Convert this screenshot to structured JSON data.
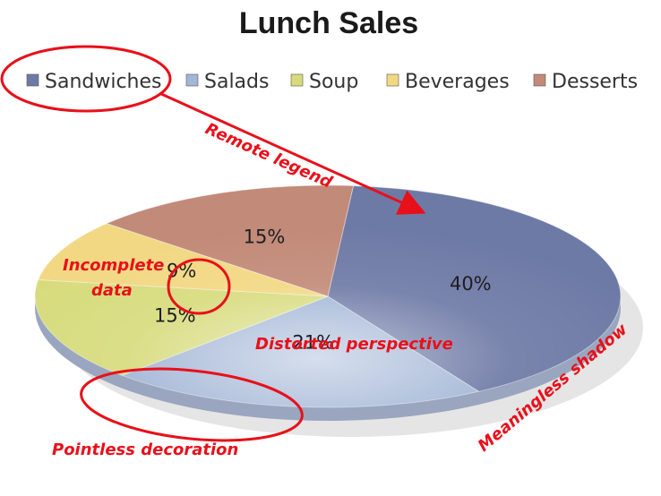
{
  "chart_data": {
    "type": "pie",
    "title": "Lunch Sales",
    "categories": [
      "Sandwiches",
      "Salads",
      "Soup",
      "Beverages",
      "Desserts"
    ],
    "values": [
      40,
      21,
      15,
      9,
      15
    ],
    "labels": [
      "40%",
      "21%",
      "15%",
      "9%",
      "15%"
    ],
    "legend_position": "top",
    "colors": [
      "#6e7aa6",
      "#a3b6d6",
      "#d7db7c",
      "#f2d883",
      "#c28a78"
    ]
  },
  "annotations": {
    "remote_legend": "Remote legend",
    "incomplete_line1": "Incomplete",
    "incomplete_line2": "data",
    "distorted": "Distorted perspective",
    "pointless": "Pointless decoration",
    "shadow": "Meaningless shadow"
  },
  "annotation_color": "#e8101a"
}
